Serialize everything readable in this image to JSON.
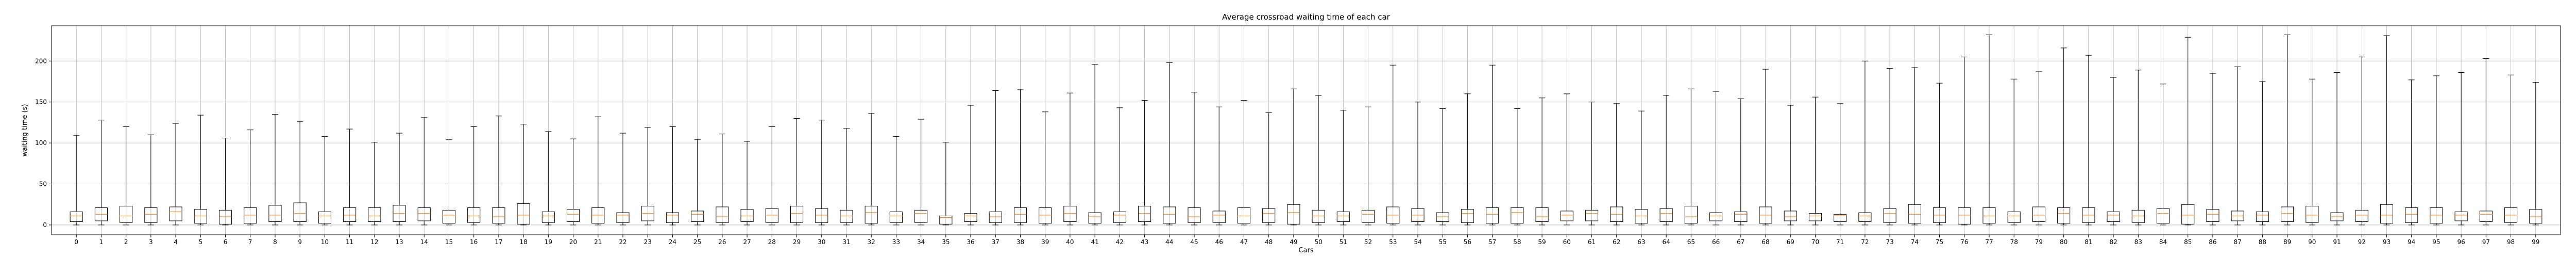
{
  "chart_data": {
    "type": "boxplot",
    "title": "Average crossroad waiting time of each car",
    "xlabel": "Cars",
    "ylabel": "waiting time (s)",
    "ylim": [
      -12,
      243
    ],
    "yticks": [
      0,
      50,
      100,
      150,
      200
    ],
    "grid": true,
    "box_color": "#000000",
    "median_color": "#ff7f0e",
    "categories": [
      "0",
      "1",
      "2",
      "3",
      "4",
      "5",
      "6",
      "7",
      "8",
      "9",
      "10",
      "11",
      "12",
      "13",
      "14",
      "15",
      "16",
      "17",
      "18",
      "19",
      "20",
      "21",
      "22",
      "23",
      "24",
      "25",
      "26",
      "27",
      "28",
      "29",
      "30",
      "31",
      "32",
      "33",
      "34",
      "35",
      "36",
      "37",
      "38",
      "39",
      "40",
      "41",
      "42",
      "43",
      "44",
      "45",
      "46",
      "47",
      "48",
      "49",
      "50",
      "51",
      "52",
      "53",
      "54",
      "55",
      "56",
      "57",
      "58",
      "59",
      "60",
      "61",
      "62",
      "63",
      "64",
      "65",
      "66",
      "67",
      "68",
      "69",
      "70",
      "71",
      "72",
      "73",
      "74",
      "75",
      "76",
      "77",
      "78",
      "79",
      "80",
      "81",
      "82",
      "83",
      "84",
      "85",
      "86",
      "87",
      "88",
      "89",
      "90",
      "91",
      "92",
      "93",
      "94",
      "95",
      "96",
      "97",
      "98",
      "99"
    ],
    "whisker_high": [
      109,
      128,
      120,
      110,
      124,
      134,
      106,
      116,
      135,
      126,
      108,
      117,
      101,
      112,
      131,
      104,
      120,
      133,
      123,
      114,
      105,
      132,
      112,
      119,
      120,
      104,
      111,
      102,
      120,
      130,
      128,
      118,
      136,
      108,
      129,
      101,
      146,
      164,
      165,
      138,
      161,
      196,
      143,
      152,
      198,
      162,
      144,
      152,
      137,
      166,
      158,
      140,
      144,
      195,
      150,
      142,
      160,
      195,
      142,
      155,
      160,
      150,
      148,
      139,
      158,
      166,
      163,
      154,
      190,
      146,
      156,
      148,
      200,
      191,
      192,
      173,
      205,
      232,
      178,
      187,
      216,
      207,
      180,
      189,
      172,
      229,
      185,
      193,
      175,
      232,
      178,
      186,
      205,
      231,
      177,
      182,
      186,
      203,
      183,
      174
    ],
    "whisker_low": [
      0,
      0,
      0,
      0,
      0,
      0,
      0,
      0,
      0,
      0,
      0,
      0,
      0,
      0,
      0,
      0,
      0,
      0,
      0,
      0,
      0,
      0,
      0,
      0,
      0,
      0,
      0,
      0,
      0,
      0,
      0,
      0,
      0,
      0,
      0,
      0,
      0,
      0,
      0,
      0,
      0,
      0,
      0,
      0,
      0,
      0,
      0,
      0,
      0,
      0,
      0,
      0,
      0,
      0,
      0,
      0,
      0,
      0,
      0,
      0,
      0,
      0,
      0,
      0,
      0,
      0,
      0,
      0,
      0,
      0,
      0,
      0,
      0,
      0,
      0,
      0,
      0,
      0,
      0,
      0,
      0,
      0,
      0,
      0,
      0,
      0,
      0,
      0,
      0,
      0,
      0,
      0,
      0,
      0,
      0,
      0,
      0,
      0,
      0,
      0
    ],
    "q1": [
      4,
      5,
      3,
      3,
      5,
      2,
      1,
      2,
      4,
      4,
      2,
      4,
      4,
      4,
      5,
      2,
      3,
      2,
      1,
      3,
      4,
      2,
      3,
      5,
      3,
      4,
      3,
      4,
      3,
      3,
      3,
      3,
      2,
      3,
      3,
      1,
      4,
      3,
      3,
      2,
      4,
      2,
      3,
      4,
      2,
      3,
      3,
      2,
      3,
      1,
      3,
      4,
      3,
      2,
      4,
      4,
      3,
      2,
      2,
      4,
      5,
      5,
      4,
      2,
      4,
      2,
      5,
      4,
      2,
      5,
      5,
      4,
      4,
      3,
      2,
      3,
      1,
      2,
      3,
      4,
      2,
      3,
      4,
      3,
      2,
      1,
      4,
      5,
      4,
      4,
      3,
      5,
      4,
      2,
      3,
      2,
      5,
      4,
      3,
      2
    ],
    "median": [
      11,
      13,
      11,
      13,
      16,
      11,
      10,
      12,
      12,
      14,
      11,
      12,
      11,
      14,
      14,
      12,
      11,
      10,
      12,
      11,
      13,
      12,
      12,
      14,
      12,
      13,
      10,
      11,
      12,
      14,
      12,
      11,
      15,
      11,
      14,
      9,
      11,
      10,
      13,
      12,
      14,
      10,
      12,
      14,
      13,
      10,
      12,
      11,
      14,
      15,
      11,
      11,
      13,
      12,
      12,
      10,
      14,
      13,
      15,
      10,
      12,
      14,
      13,
      11,
      14,
      10,
      11,
      13,
      12,
      10,
      11,
      12,
      11,
      14,
      13,
      12,
      12,
      11,
      11,
      12,
      14,
      12,
      12,
      11,
      14,
      12,
      13,
      11,
      12,
      14,
      12,
      10,
      12,
      12,
      13,
      12,
      12,
      13,
      12,
      10
    ],
    "q3": [
      16,
      21,
      23,
      21,
      22,
      19,
      18,
      21,
      24,
      27,
      16,
      21,
      21,
      24,
      21,
      18,
      21,
      21,
      26,
      16,
      19,
      21,
      15,
      23,
      15,
      17,
      22,
      19,
      20,
      23,
      20,
      18,
      23,
      16,
      18,
      11,
      14,
      16,
      21,
      21,
      23,
      15,
      16,
      23,
      22,
      21,
      17,
      21,
      20,
      25,
      18,
      16,
      18,
      22,
      20,
      15,
      19,
      21,
      21,
      21,
      17,
      18,
      22,
      19,
      20,
      23,
      15,
      16,
      22,
      17,
      14,
      13,
      15,
      20,
      25,
      21,
      21,
      21,
      16,
      22,
      21,
      21,
      16,
      18,
      20,
      25,
      19,
      17,
      16,
      22,
      23,
      15,
      18,
      25,
      21,
      21,
      16,
      17,
      21,
      19
    ]
  }
}
